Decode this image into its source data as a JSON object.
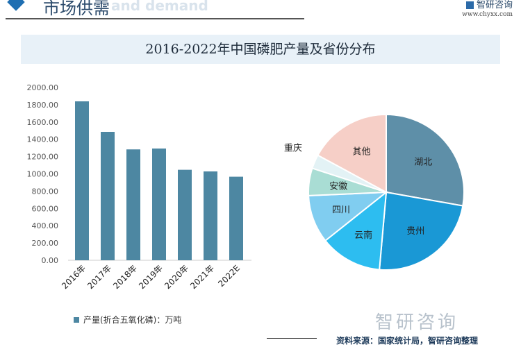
{
  "header": {
    "title": "市场供需",
    "subtitle_faint": "and demand",
    "logo": "智研咨询",
    "url": "www.chyxx.com"
  },
  "chart_title": "2016-2022年中国磷肥产量及省份分布",
  "chart_data": [
    {
      "type": "bar",
      "categories": [
        "2016年",
        "2017年",
        "2018年",
        "2019年",
        "2020年",
        "2021年",
        "2022E"
      ],
      "series": [
        {
          "name": "产量(折合五氧化磷)：万吨",
          "values": [
            1839,
            1486,
            1283,
            1293,
            1047,
            1028,
            967
          ],
          "color": "#4d87a2"
        }
      ],
      "ylim": [
        0,
        2000
      ],
      "yticks": [
        "0.00",
        "200.00",
        "400.00",
        "600.00",
        "800.00",
        "1000.00",
        "1200.00",
        "1400.00",
        "1600.00",
        "1800.00",
        "2000.00"
      ],
      "grid": false,
      "legend": "bottom-left"
    },
    {
      "type": "pie",
      "labels": [
        "湖北",
        "贵州",
        "云南",
        "四川",
        "安徽",
        "重庆",
        "其他"
      ],
      "values": [
        27.8,
        23.6,
        12.9,
        10.0,
        5.7,
        2.9,
        17.1
      ],
      "colors": [
        "#5e8fa8",
        "#1a98d5",
        "#2dbdf0",
        "#80cdf0",
        "#a9ddd4",
        "#e3f2f5",
        "#f6cfc7"
      ]
    }
  ],
  "legend_label": "产量(折合五氧化磷)：万吨",
  "footer": {
    "logo": "智研咨询",
    "source": "资料来源：国家统计局，智研咨询整理"
  }
}
